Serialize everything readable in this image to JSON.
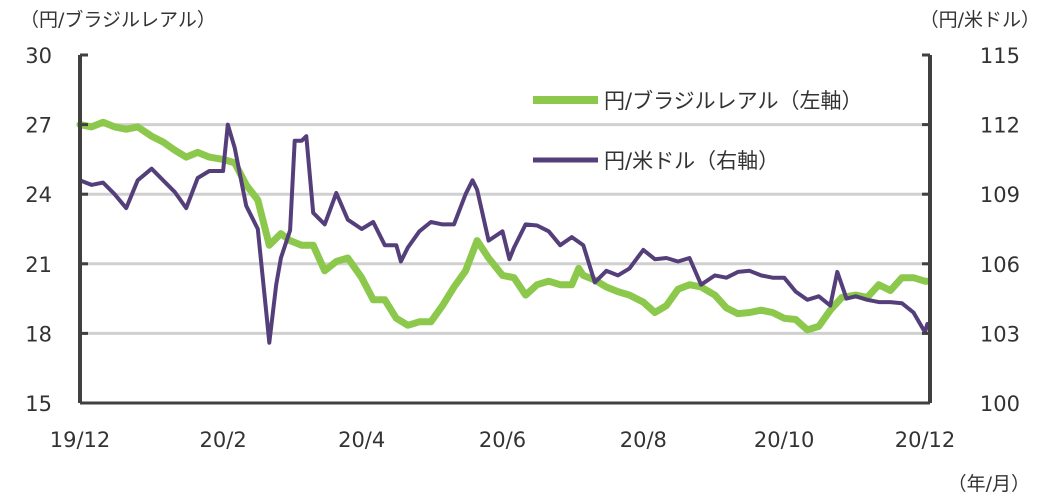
{
  "chart_data": {
    "type": "line",
    "title": "",
    "ylabel_left": "（円/ブラジルレアル）",
    "ylabel_right": "（円/米ドル）",
    "xlabel": "（年/月）",
    "x_ticks": [
      "19/12",
      "20/2",
      "20/4",
      "20/6",
      "20/8",
      "20/10",
      "20/12"
    ],
    "x_tick_dates": [
      "2019-12-01",
      "2020-02-01",
      "2020-04-01",
      "2020-06-01",
      "2020-08-01",
      "2020-10-01",
      "2020-12-01"
    ],
    "xlim": [
      "2019-12-01",
      "2020-12-01"
    ],
    "ylim_left": [
      15,
      30
    ],
    "yticks_left": [
      "30",
      "27",
      "24",
      "21",
      "18",
      "15"
    ],
    "ylim_right": [
      100,
      115
    ],
    "yticks_right": [
      "115",
      "112",
      "109",
      "106",
      "103",
      "100"
    ],
    "grid": "horizontal",
    "legend_position": "top-right",
    "series": [
      {
        "name": "円/ブラジルレアル（左軸）",
        "axis": "left",
        "color": "#8cc84b",
        "points": [
          [
            "2019-12-01",
            27.0
          ],
          [
            "2019-12-06",
            26.9
          ],
          [
            "2019-12-11",
            27.1
          ],
          [
            "2019-12-16",
            26.9
          ],
          [
            "2019-12-21",
            26.8
          ],
          [
            "2019-12-26",
            26.9
          ],
          [
            "2020-01-01",
            26.5
          ],
          [
            "2020-01-06",
            26.25
          ],
          [
            "2020-01-11",
            25.9
          ],
          [
            "2020-01-16",
            25.6
          ],
          [
            "2020-01-21",
            25.8
          ],
          [
            "2020-01-26",
            25.6
          ],
          [
            "2020-02-01",
            25.5
          ],
          [
            "2020-02-06",
            25.35
          ],
          [
            "2020-02-11",
            24.4
          ],
          [
            "2020-02-16",
            23.75
          ],
          [
            "2020-02-21",
            21.8
          ],
          [
            "2020-02-26",
            22.3
          ],
          [
            "2020-03-01",
            22.0
          ],
          [
            "2020-03-06",
            21.8
          ],
          [
            "2020-03-11",
            21.8
          ],
          [
            "2020-03-16",
            20.7
          ],
          [
            "2020-03-21",
            21.1
          ],
          [
            "2020-03-26",
            21.25
          ],
          [
            "2020-04-01",
            20.4
          ],
          [
            "2020-04-06",
            19.45
          ],
          [
            "2020-04-11",
            19.45
          ],
          [
            "2020-04-16",
            18.65
          ],
          [
            "2020-04-21",
            18.35
          ],
          [
            "2020-04-26",
            18.5
          ],
          [
            "2020-05-01",
            18.5
          ],
          [
            "2020-05-06",
            19.2
          ],
          [
            "2020-05-11",
            20.0
          ],
          [
            "2020-05-16",
            20.7
          ],
          [
            "2020-05-21",
            22.0
          ],
          [
            "2020-05-26",
            21.25
          ],
          [
            "2020-06-01",
            20.5
          ],
          [
            "2020-06-06",
            20.4
          ],
          [
            "2020-06-11",
            19.65
          ],
          [
            "2020-06-16",
            20.1
          ],
          [
            "2020-06-21",
            20.25
          ],
          [
            "2020-06-26",
            20.1
          ],
          [
            "2020-07-01",
            20.1
          ],
          [
            "2020-07-04",
            20.8
          ],
          [
            "2020-07-06",
            20.5
          ],
          [
            "2020-07-11",
            20.3
          ],
          [
            "2020-07-16",
            20.0
          ],
          [
            "2020-07-21",
            19.8
          ],
          [
            "2020-07-26",
            19.65
          ],
          [
            "2020-08-01",
            19.35
          ],
          [
            "2020-08-06",
            18.9
          ],
          [
            "2020-08-11",
            19.2
          ],
          [
            "2020-08-16",
            19.9
          ],
          [
            "2020-08-21",
            20.1
          ],
          [
            "2020-08-26",
            20.0
          ],
          [
            "2020-09-01",
            19.65
          ],
          [
            "2020-09-06",
            19.1
          ],
          [
            "2020-09-11",
            18.85
          ],
          [
            "2020-09-16",
            18.9
          ],
          [
            "2020-09-21",
            19.0
          ],
          [
            "2020-09-26",
            18.9
          ],
          [
            "2020-10-01",
            18.65
          ],
          [
            "2020-10-06",
            18.6
          ],
          [
            "2020-10-11",
            18.15
          ],
          [
            "2020-10-16",
            18.3
          ],
          [
            "2020-10-21",
            19.0
          ],
          [
            "2020-10-26",
            19.55
          ],
          [
            "2020-11-01",
            19.65
          ],
          [
            "2020-11-06",
            19.55
          ],
          [
            "2020-11-11",
            20.1
          ],
          [
            "2020-11-16",
            19.85
          ],
          [
            "2020-11-21",
            20.4
          ],
          [
            "2020-11-26",
            20.4
          ],
          [
            "2020-12-01",
            20.25
          ],
          [
            "2020-12-02",
            20.25
          ]
        ]
      },
      {
        "name": "円/米ドル（右軸）",
        "axis": "right",
        "color": "#553f7a",
        "points": [
          [
            "2019-12-01",
            109.6
          ],
          [
            "2019-12-06",
            109.4
          ],
          [
            "2019-12-11",
            109.5
          ],
          [
            "2019-12-16",
            109.0
          ],
          [
            "2019-12-21",
            108.4
          ],
          [
            "2019-12-26",
            109.6
          ],
          [
            "2020-01-01",
            110.1
          ],
          [
            "2020-01-06",
            109.6
          ],
          [
            "2020-01-11",
            109.1
          ],
          [
            "2020-01-16",
            108.4
          ],
          [
            "2020-01-21",
            109.7
          ],
          [
            "2020-01-26",
            110.0
          ],
          [
            "2020-02-01",
            110.0
          ],
          [
            "2020-02-03",
            112.0
          ],
          [
            "2020-02-06",
            111.0
          ],
          [
            "2020-02-11",
            108.5
          ],
          [
            "2020-02-16",
            107.5
          ],
          [
            "2020-02-20",
            103.6
          ],
          [
            "2020-02-21",
            102.6
          ],
          [
            "2020-02-24",
            105.1
          ],
          [
            "2020-02-26",
            106.25
          ],
          [
            "2020-03-01",
            107.45
          ],
          [
            "2020-03-03",
            111.3
          ],
          [
            "2020-03-06",
            111.3
          ],
          [
            "2020-03-08",
            111.5
          ],
          [
            "2020-03-11",
            108.2
          ],
          [
            "2020-03-16",
            107.7
          ],
          [
            "2020-03-21",
            109.05
          ],
          [
            "2020-03-26",
            107.9
          ],
          [
            "2020-04-01",
            107.5
          ],
          [
            "2020-04-06",
            107.8
          ],
          [
            "2020-04-11",
            106.8
          ],
          [
            "2020-04-16",
            106.8
          ],
          [
            "2020-04-18",
            106.1
          ],
          [
            "2020-04-21",
            106.7
          ],
          [
            "2020-04-26",
            107.4
          ],
          [
            "2020-05-01",
            107.8
          ],
          [
            "2020-05-06",
            107.7
          ],
          [
            "2020-05-11",
            107.7
          ],
          [
            "2020-05-16",
            109.0
          ],
          [
            "2020-05-19",
            109.6
          ],
          [
            "2020-05-21",
            109.2
          ],
          [
            "2020-05-26",
            107.0
          ],
          [
            "2020-06-01",
            107.4
          ],
          [
            "2020-06-04",
            106.2
          ],
          [
            "2020-06-06",
            106.7
          ],
          [
            "2020-06-11",
            107.7
          ],
          [
            "2020-06-16",
            107.65
          ],
          [
            "2020-06-21",
            107.4
          ],
          [
            "2020-06-26",
            106.8
          ],
          [
            "2020-07-01",
            107.15
          ],
          [
            "2020-07-06",
            106.8
          ],
          [
            "2020-07-11",
            105.2
          ],
          [
            "2020-07-16",
            105.7
          ],
          [
            "2020-07-21",
            105.5
          ],
          [
            "2020-07-26",
            105.8
          ],
          [
            "2020-08-01",
            106.6
          ],
          [
            "2020-08-06",
            106.2
          ],
          [
            "2020-08-11",
            106.25
          ],
          [
            "2020-08-16",
            106.1
          ],
          [
            "2020-08-21",
            106.25
          ],
          [
            "2020-08-26",
            105.1
          ],
          [
            "2020-09-01",
            105.5
          ],
          [
            "2020-09-06",
            105.4
          ],
          [
            "2020-09-11",
            105.65
          ],
          [
            "2020-09-16",
            105.7
          ],
          [
            "2020-09-21",
            105.5
          ],
          [
            "2020-09-26",
            105.4
          ],
          [
            "2020-10-01",
            105.4
          ],
          [
            "2020-10-06",
            104.8
          ],
          [
            "2020-10-11",
            104.45
          ],
          [
            "2020-10-16",
            104.6
          ],
          [
            "2020-10-21",
            104.2
          ],
          [
            "2020-10-24",
            105.65
          ],
          [
            "2020-10-28",
            104.5
          ],
          [
            "2020-11-01",
            104.6
          ],
          [
            "2020-11-06",
            104.45
          ],
          [
            "2020-11-11",
            104.35
          ],
          [
            "2020-11-16",
            104.35
          ],
          [
            "2020-11-21",
            104.3
          ],
          [
            "2020-11-26",
            103.9
          ],
          [
            "2020-12-01",
            103.05
          ],
          [
            "2020-12-02",
            103.4
          ]
        ]
      }
    ]
  }
}
